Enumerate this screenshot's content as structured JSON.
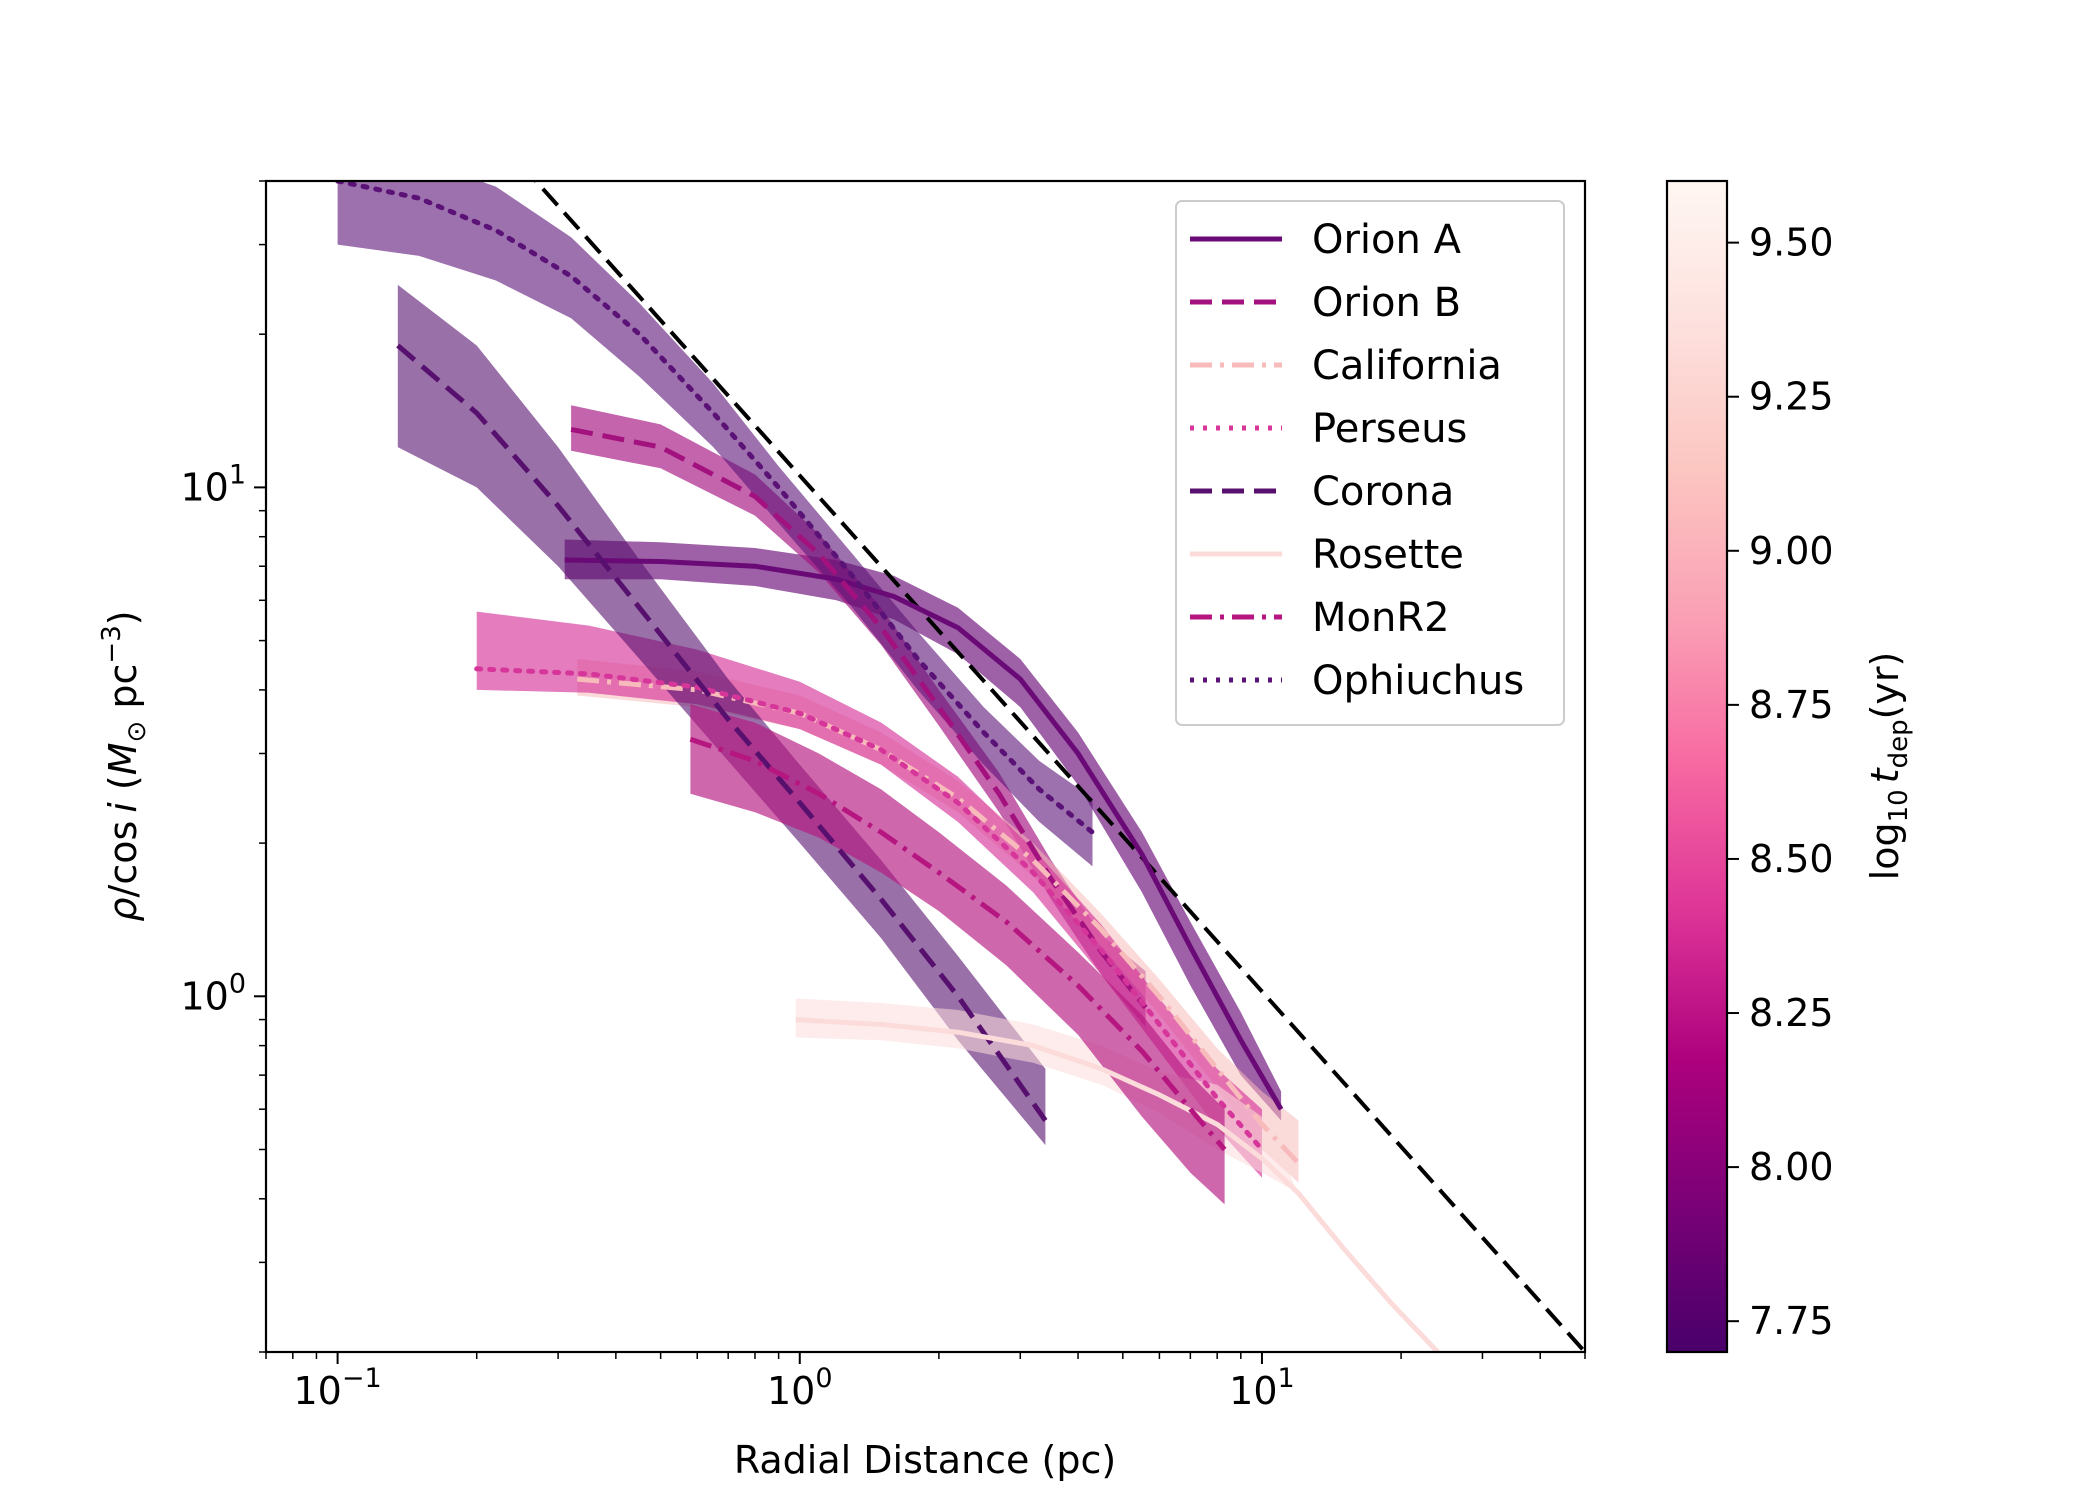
{
  "chart_data": {
    "type": "line",
    "title": "",
    "xlabel": "Radial Distance (pc)",
    "ylabel_parts": {
      "rho": "ρ",
      "slash_cos": "/cos",
      "i": "i",
      "open": " (",
      "M": "M",
      "sun": "⊙",
      "unit": " pc",
      "exp": "−3",
      "close": ")"
    },
    "x_scale": "log",
    "y_scale": "log",
    "xlim": [
      0.07,
      50
    ],
    "ylim": [
      0.2,
      40
    ],
    "x_ticks": [
      {
        "value": 0.1,
        "base": "10",
        "exp": "−1"
      },
      {
        "value": 1,
        "base": "10",
        "exp": "0"
      },
      {
        "value": 10,
        "base": "10",
        "exp": "1"
      }
    ],
    "y_ticks": [
      {
        "value": 1,
        "base": "10",
        "exp": "0"
      },
      {
        "value": 10,
        "base": "10",
        "exp": "1"
      }
    ],
    "reference_line": {
      "name": "power-law reference",
      "color": "#000000",
      "style": "dashed",
      "x": [
        0.25,
        50
      ],
      "y": [
        43,
        0.2
      ]
    },
    "series": [
      {
        "name": "Orion A",
        "t_dep": 7.9,
        "color": "#6a0a76",
        "style": "solid",
        "band_opacity": 0.65,
        "x": [
          0.31,
          0.5,
          0.8,
          1.2,
          1.6,
          2.2,
          3.0,
          4.0,
          5.5,
          7.0,
          9.0,
          11.0
        ],
        "y": [
          7.2,
          7.15,
          7.0,
          6.6,
          6.1,
          5.3,
          4.2,
          3.0,
          1.9,
          1.25,
          0.82,
          0.6
        ],
        "lo": [
          6.6,
          6.6,
          6.4,
          6.0,
          5.5,
          4.7,
          3.7,
          2.6,
          1.6,
          1.05,
          0.7,
          0.57
        ],
        "hi": [
          7.9,
          7.8,
          7.6,
          7.2,
          6.7,
          5.8,
          4.6,
          3.3,
          2.1,
          1.4,
          0.93,
          0.65
        ]
      },
      {
        "name": "Orion B",
        "t_dep": 8.15,
        "color": "#a3117f",
        "style": "dashed",
        "band_opacity": 0.65,
        "x": [
          0.32,
          0.5,
          0.8,
          1.1,
          1.5,
          2.0,
          2.7,
          3.5,
          4.5,
          5.6
        ],
        "y": [
          13.0,
          12.0,
          9.6,
          7.4,
          5.3,
          3.7,
          2.5,
          1.7,
          1.22,
          0.95
        ],
        "lo": [
          11.8,
          10.9,
          8.8,
          6.8,
          4.9,
          3.4,
          2.3,
          1.55,
          1.1,
          0.87
        ],
        "hi": [
          14.5,
          13.3,
          10.6,
          8.1,
          5.8,
          4.0,
          2.75,
          1.85,
          1.32,
          1.12
        ]
      },
      {
        "name": "California",
        "t_dep": 9.3,
        "color": "#f8bbbb",
        "style": "dashdot",
        "band_opacity": 0.55,
        "x": [
          0.33,
          0.6,
          1.0,
          1.5,
          2.2,
          3.2,
          4.5,
          6.0,
          8.0,
          10.0,
          12.0
        ],
        "y": [
          4.2,
          4.0,
          3.6,
          3.05,
          2.45,
          1.85,
          1.35,
          1.0,
          0.72,
          0.56,
          0.47
        ],
        "lo": [
          3.9,
          3.7,
          3.35,
          2.85,
          2.3,
          1.72,
          1.25,
          0.92,
          0.66,
          0.5,
          0.43
        ],
        "hi": [
          4.6,
          4.35,
          3.9,
          3.3,
          2.65,
          2.0,
          1.45,
          1.08,
          0.79,
          0.65,
          0.57
        ]
      },
      {
        "name": "Perseus",
        "t_dep": 8.6,
        "color": "#d6359a",
        "style": "dotted",
        "band_opacity": 0.65,
        "x": [
          0.2,
          0.35,
          0.6,
          1.0,
          1.5,
          2.2,
          3.2,
          4.5,
          6.0,
          8.0,
          10.0
        ],
        "y": [
          4.4,
          4.3,
          4.05,
          3.6,
          3.05,
          2.4,
          1.75,
          1.23,
          0.88,
          0.63,
          0.5
        ],
        "lo": [
          4.0,
          3.95,
          3.75,
          3.35,
          2.85,
          2.2,
          1.6,
          1.1,
          0.78,
          0.55,
          0.44
        ],
        "hi": [
          5.7,
          5.35,
          4.8,
          4.15,
          3.45,
          2.7,
          1.95,
          1.38,
          0.99,
          0.72,
          0.6
        ]
      },
      {
        "name": "Corona",
        "t_dep": 7.85,
        "color": "#57106e",
        "style": "dashed",
        "band_opacity": 0.6,
        "x": [
          0.135,
          0.2,
          0.3,
          0.45,
          0.7,
          1.0,
          1.5,
          2.2,
          3.4
        ],
        "y": [
          19.0,
          14.0,
          9.2,
          5.8,
          3.5,
          2.4,
          1.55,
          1.0,
          0.57
        ],
        "lo": [
          12.0,
          10.0,
          7.0,
          4.6,
          2.9,
          2.0,
          1.3,
          0.82,
          0.51
        ],
        "hi": [
          25.0,
          19.0,
          12.0,
          7.2,
          4.2,
          2.85,
          1.85,
          1.2,
          0.72
        ]
      },
      {
        "name": "Rosette",
        "t_dep": 9.45,
        "color": "#fbdcda",
        "style": "solid",
        "band_opacity": 0.55,
        "x": [
          0.98,
          1.5,
          2.2,
          3.2,
          4.5,
          6.0,
          8.0,
          10.0,
          12.0,
          15.0,
          19.0,
          24.0
        ],
        "y": [
          0.9,
          0.88,
          0.85,
          0.8,
          0.72,
          0.64,
          0.56,
          0.48,
          0.41,
          0.32,
          0.25,
          0.2
        ],
        "lo": [
          0.83,
          0.82,
          0.79,
          0.74,
          0.67,
          0.59,
          0.5,
          0.45,
          0.41,
          0.32,
          0.25,
          0.2
        ],
        "hi": [
          0.99,
          0.97,
          0.94,
          0.88,
          0.8,
          0.71,
          0.67,
          0.58,
          0.41,
          0.32,
          0.25,
          0.2
        ]
      },
      {
        "name": "MonR2",
        "t_dep": 8.3,
        "color": "#b5167f",
        "style": "dashdot",
        "band_opacity": 0.65,
        "x": [
          0.58,
          0.8,
          1.1,
          1.5,
          2.0,
          2.8,
          4.0,
          5.5,
          7.0,
          8.3
        ],
        "y": [
          3.2,
          2.9,
          2.5,
          2.1,
          1.75,
          1.4,
          1.05,
          0.78,
          0.6,
          0.5
        ],
        "lo": [
          2.5,
          2.3,
          2.05,
          1.75,
          1.47,
          1.15,
          0.84,
          0.58,
          0.45,
          0.39
        ],
        "hi": [
          3.75,
          3.45,
          3.0,
          2.55,
          2.1,
          1.65,
          1.22,
          0.92,
          0.7,
          0.6
        ]
      },
      {
        "name": "Ophiuchus",
        "t_dep": 7.9,
        "color": "#5b1277",
        "style": "dotted",
        "band_opacity": 0.6,
        "x": [
          0.1,
          0.15,
          0.22,
          0.32,
          0.45,
          0.65,
          0.9,
          1.3,
          1.8,
          2.5,
          3.3,
          4.3
        ],
        "y": [
          40.0,
          37.0,
          32.0,
          26.0,
          20.0,
          14.0,
          10.0,
          6.7,
          4.6,
          3.3,
          2.55,
          2.1
        ],
        "lo": [
          30.0,
          28.5,
          25.5,
          21.5,
          16.5,
          12.0,
          8.5,
          5.8,
          4.0,
          2.85,
          2.2,
          1.8
        ],
        "hi": [
          46.0,
          44.0,
          39.0,
          31.0,
          23.0,
          16.0,
          11.0,
          7.4,
          5.2,
          3.7,
          2.9,
          2.45
        ]
      }
    ],
    "legend_placement": "top-right",
    "colorbar": {
      "label_parts": {
        "log": "log",
        "sub10": "10",
        "t": "t",
        "subdep": "dep",
        "unit": "(yr)"
      },
      "range": [
        7.7,
        9.6
      ],
      "ticks": [
        7.75,
        8.0,
        8.25,
        8.5,
        8.75,
        9.0,
        9.25,
        9.5
      ],
      "tick_labels": [
        "7.75",
        "8.00",
        "8.25",
        "8.50",
        "8.75",
        "9.00",
        "9.25",
        "9.50"
      ],
      "colormap": "RdPu_r",
      "stops": [
        {
          "t": 0.0,
          "color": "#49006a"
        },
        {
          "t": 0.125,
          "color": "#7a0177"
        },
        {
          "t": 0.25,
          "color": "#ae017e"
        },
        {
          "t": 0.375,
          "color": "#dd3497"
        },
        {
          "t": 0.5,
          "color": "#f768a1"
        },
        {
          "t": 0.625,
          "color": "#fa9fb5"
        },
        {
          "t": 0.75,
          "color": "#fcc5c0"
        },
        {
          "t": 0.875,
          "color": "#fde0dd"
        },
        {
          "t": 1.0,
          "color": "#fff7f3"
        }
      ]
    }
  }
}
